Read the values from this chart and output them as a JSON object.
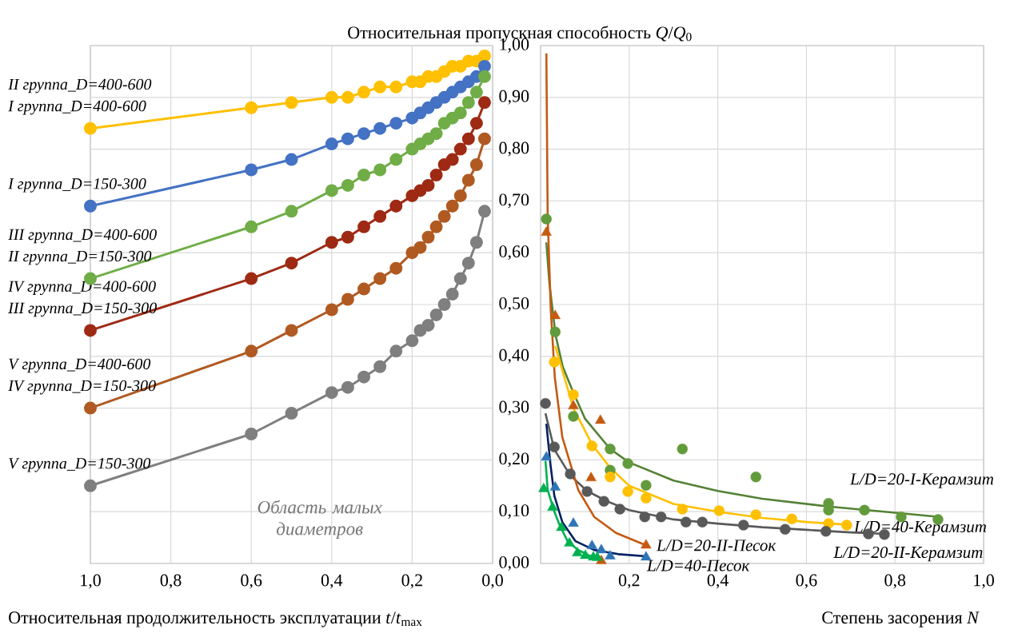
{
  "chart_data": [
    {
      "type": "line",
      "ylabel": "Относительная пропускная способность *Q*/*Q*$_{0}$",
      "xlabel": "Относительная продолжительность эксплуатации *t*/*t*$_{max}$",
      "xlim": [
        1.0,
        0
      ],
      "ylim": [
        0,
        1.0
      ],
      "xticks": [
        {
          "value": 1.0,
          "label": "1,0"
        },
        {
          "value": 0.8,
          "label": "0,8"
        },
        {
          "value": 0.6,
          "label": "0,6"
        },
        {
          "value": 0.4,
          "label": "0,4"
        },
        {
          "value": 0.2,
          "label": "0,2"
        },
        {
          "value": 0,
          "label": "0,0"
        }
      ],
      "yticks": [
        {
          "value": 0,
          "label": "0,00"
        },
        {
          "value": 0.1,
          "label": "0,10"
        },
        {
          "value": 0.2,
          "label": "0,20"
        },
        {
          "value": 0.3,
          "label": "0,30"
        },
        {
          "value": 0.4,
          "label": "0,40"
        },
        {
          "value": 0.5,
          "label": "0,50"
        },
        {
          "value": 0.6,
          "label": "0,60"
        },
        {
          "value": 0.7,
          "label": "0,70"
        },
        {
          "value": 0.8,
          "label": "0,80"
        },
        {
          "value": 0.9,
          "label": "0,90"
        },
        {
          "value": 1.0,
          "label": "1,00"
        }
      ],
      "grid": true,
      "x": [
        1.0,
        0.6,
        0.5,
        0.4,
        0.36,
        0.32,
        0.28,
        0.24,
        0.2,
        0.18,
        0.16,
        0.14,
        0.12,
        0.1,
        0.08,
        0.06,
        0.04,
        0.02
      ],
      "series": [
        {
          "name": "I группа_D=400-600",
          "color": "#ffc000",
          "marker": "circle",
          "values": [
            0.84,
            0.88,
            0.89,
            0.9,
            0.9,
            0.91,
            0.92,
            0.92,
            0.93,
            0.93,
            0.94,
            0.94,
            0.95,
            0.96,
            0.96,
            0.97,
            0.97,
            0.98
          ]
        },
        {
          "name": "I группа_D=150-300",
          "color": "#4472c4",
          "marker": "circle",
          "values": [
            0.69,
            0.76,
            0.78,
            0.81,
            0.82,
            0.83,
            0.84,
            0.85,
            0.86,
            0.87,
            0.88,
            0.89,
            0.9,
            0.91,
            0.92,
            0.93,
            0.94,
            0.96
          ]
        },
        {
          "name": "II группа_D=150-300",
          "color": "#70ad47",
          "marker": "circle",
          "values": [
            0.55,
            0.65,
            0.68,
            0.72,
            0.73,
            0.75,
            0.76,
            0.78,
            0.8,
            0.81,
            0.82,
            0.83,
            0.85,
            0.86,
            0.87,
            0.89,
            0.91,
            0.94
          ]
        },
        {
          "name": "III группа_D=150-300",
          "color": "#9e2a14",
          "marker": "circle",
          "values": [
            0.45,
            0.55,
            0.58,
            0.62,
            0.63,
            0.65,
            0.67,
            0.69,
            0.71,
            0.72,
            0.73,
            0.75,
            0.77,
            0.78,
            0.8,
            0.82,
            0.85,
            0.89
          ]
        },
        {
          "name": "IV группа_D=150-300",
          "color": "#b05a22",
          "marker": "circle",
          "values": [
            0.3,
            0.41,
            0.45,
            0.49,
            0.51,
            0.53,
            0.55,
            0.57,
            0.6,
            0.61,
            0.63,
            0.65,
            0.67,
            0.69,
            0.71,
            0.74,
            0.77,
            0.82
          ]
        },
        {
          "name": "V группа_D=150-300",
          "color": "#7f7f7f",
          "marker": "circle",
          "values": [
            0.15,
            0.25,
            0.29,
            0.33,
            0.34,
            0.36,
            0.38,
            0.41,
            0.43,
            0.45,
            0.46,
            0.48,
            0.5,
            0.52,
            0.55,
            0.58,
            0.62,
            0.68
          ]
        }
      ],
      "annotations": [
        "II группа_D=400-600",
        "III группа_D=400-600",
        "IV группа_D=400-600",
        "V группа_D=400-600",
        "Область малых диаметров"
      ]
    },
    {
      "type": "scatter",
      "xlabel": "Степень засорения *N*",
      "tick_labels": "x",
      "xlim": [
        0,
        1.0
      ],
      "ylim": [
        0,
        1.0
      ],
      "xticks": [
        {
          "value": 0,
          "label": null
        },
        {
          "value": 0.2,
          "label": "0,2"
        },
        {
          "value": 0.4,
          "label": "0,4"
        },
        {
          "value": 0.6,
          "label": "0,6"
        },
        {
          "value": 0.8,
          "label": "0,8"
        },
        {
          "value": 1.0,
          "label": "1,0"
        }
      ],
      "yticks": [
        0,
        0.1,
        0.2,
        0.3,
        0.4,
        0.5,
        0.6,
        0.7,
        0.8,
        0.9,
        1.0
      ],
      "grid": true,
      "series": [
        {
          "name": "L/D=20-I-Керамзит",
          "type": "scatter",
          "color": "#629b3c",
          "marker": "circle",
          "x": [
            0.013,
            0.033,
            0.074,
            0.157,
            0.197,
            0.157,
            0.238,
            0.32,
            0.486,
            0.65,
            0.65,
            0.731,
            0.814,
            0.897
          ],
          "values": [
            0.665,
            0.447,
            0.284,
            0.221,
            0.193,
            0.18,
            0.151,
            0.221,
            0.167,
            0.116,
            0.103,
            0.103,
            0.09,
            0.085
          ]
        },
        {
          "type": "line",
          "color": "#548235",
          "marker": "none",
          "x": [
            0.013,
            0.02,
            0.034,
            0.05,
            0.074,
            0.1,
            0.157,
            0.2,
            0.3,
            0.4,
            0.5,
            0.65,
            0.8,
            0.9
          ],
          "values": [
            0.62,
            0.54,
            0.44,
            0.38,
            0.33,
            0.28,
            0.221,
            0.195,
            0.16,
            0.14,
            0.125,
            0.11,
            0.098,
            0.09
          ]
        },
        {
          "name": "L/D=40-Керамзит",
          "type": "scatter",
          "color": "#ffc000",
          "marker": "circle",
          "x": [
            0.031,
            0.074,
            0.116,
            0.157,
            0.197,
            0.238,
            0.32,
            0.403,
            0.486,
            0.567,
            0.65,
            0.691
          ],
          "values": [
            0.389,
            0.326,
            0.227,
            0.167,
            0.139,
            0.126,
            0.105,
            0.102,
            0.094,
            0.086,
            0.077,
            0.074
          ]
        },
        {
          "type": "line",
          "color": "#ffc000",
          "marker": "none",
          "x": [
            0.033,
            0.074,
            0.116,
            0.157,
            0.2,
            0.3,
            0.4,
            0.5,
            0.6,
            0.69
          ],
          "values": [
            0.42,
            0.3,
            0.23,
            0.185,
            0.15,
            0.115,
            0.1,
            0.088,
            0.08,
            0.075
          ]
        },
        {
          "name": "L/D=20-II-Керамзит",
          "type": "scatter",
          "color": "#595959",
          "marker": "circle",
          "x": [
            0.011,
            0.031,
            0.067,
            0.105,
            0.143,
            0.179,
            0.235,
            0.272,
            0.328,
            0.365,
            0.458,
            0.552,
            0.644,
            0.74,
            0.776
          ],
          "values": [
            0.309,
            0.225,
            0.173,
            0.139,
            0.12,
            0.105,
            0.09,
            0.09,
            0.08,
            0.08,
            0.074,
            0.066,
            0.062,
            0.057,
            0.056
          ]
        },
        {
          "type": "line",
          "color": "#595959",
          "marker": "none",
          "x": [
            0.011,
            0.031,
            0.067,
            0.105,
            0.15,
            0.2,
            0.3,
            0.4,
            0.5,
            0.6,
            0.7,
            0.78
          ],
          "values": [
            0.29,
            0.22,
            0.17,
            0.14,
            0.12,
            0.103,
            0.085,
            0.077,
            0.07,
            0.065,
            0.06,
            0.057
          ]
        },
        {
          "name": "L/D=20-II-Песок",
          "type": "scatter",
          "color": "#c55a11",
          "marker": "triangle",
          "x": [
            0.013,
            0.033,
            0.074,
            0.135,
            0.114,
            0.137,
            0.238
          ],
          "values": [
            0.639,
            0.478,
            0.304,
            0.276,
            0.165,
            0.005,
            0.035
          ]
        },
        {
          "type": "line",
          "color": "#c55a11",
          "marker": "none",
          "x": [
            0.013,
            0.016,
            0.023,
            0.032,
            0.049,
            0.085,
            0.121,
            0.17,
            0.238
          ],
          "values": [
            0.985,
            0.67,
            0.49,
            0.36,
            0.244,
            0.142,
            0.09,
            0.059,
            0.035
          ]
        },
        {
          "name": "L/D=40-Песок",
          "type": "scatter",
          "color": "#2e75b6",
          "marker": "triangle",
          "x": [
            0.013,
            0.033,
            0.074,
            0.116,
            0.137,
            0.157,
            0.238
          ],
          "values": [
            0.205,
            0.147,
            0.077,
            0.034,
            0.026,
            0.014,
            0.012
          ]
        },
        {
          "type": "line",
          "color": "#002060",
          "marker": "none",
          "x": [
            0.013,
            0.022,
            0.031,
            0.049,
            0.079,
            0.121,
            0.175,
            0.238
          ],
          "values": [
            0.27,
            0.193,
            0.131,
            0.08,
            0.043,
            0.026,
            0.018,
            0.014
          ]
        },
        {
          "type": "scatter",
          "color": "#00b050",
          "marker": "triangle",
          "x": [
            0.007,
            0.027,
            0.047,
            0.065,
            0.083,
            0.101,
            0.119,
            0.128
          ],
          "values": [
            0.144,
            0.108,
            0.069,
            0.039,
            0.02,
            0.015,
            0.012,
            0.011
          ]
        },
        {
          "type": "line",
          "color": "#00b050",
          "marker": "none",
          "x": [
            0.011,
            0.016,
            0.029,
            0.043,
            0.061,
            0.085,
            0.11,
            0.13
          ],
          "values": [
            0.198,
            0.142,
            0.105,
            0.074,
            0.043,
            0.026,
            0.015,
            0.011
          ]
        }
      ]
    }
  ]
}
